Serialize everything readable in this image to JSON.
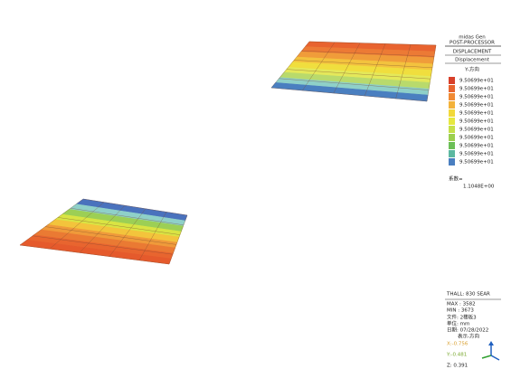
{
  "header": {
    "product": "midas Gen",
    "module": "POST-PROCESSOR"
  },
  "result": {
    "type": "DISPLACEMENT",
    "component": "Displacement",
    "direction": "Y-方向"
  },
  "legend": [
    {
      "label": "9.50699e+01",
      "color": "#d8402a"
    },
    {
      "label": "9.50699e+01",
      "color": "#e8652f"
    },
    {
      "label": "9.50699e+01",
      "color": "#f08a34"
    },
    {
      "label": "9.50699e+01",
      "color": "#f3b23a"
    },
    {
      "label": "9.50699e+01",
      "color": "#f2d93a"
    },
    {
      "label": "9.50699e+01",
      "color": "#e6e840"
    },
    {
      "label": "9.50699e+01",
      "color": "#c6e04a"
    },
    {
      "label": "9.50699e+01",
      "color": "#9ccf4f"
    },
    {
      "label": "9.50699e+01",
      "color": "#6cbf57"
    },
    {
      "label": "9.50699e+01",
      "color": "#5cb8a0"
    },
    {
      "label": "9.50699e+01",
      "color": "#4a7fc0"
    }
  ],
  "factor": {
    "label": "系数=",
    "value": "1.1048E+00"
  },
  "info": {
    "case": "THALL: 830 SEAR",
    "max": "MAX : 3582",
    "min": "MIN : 3673",
    "file": "文件: 2楼板3",
    "unit": "单位: mm",
    "date": "日期: 07/28/2022",
    "view": "表示-方向",
    "x": "X:-0.756",
    "y": "Y:-0.481",
    "z": "Z: 0.391"
  }
}
